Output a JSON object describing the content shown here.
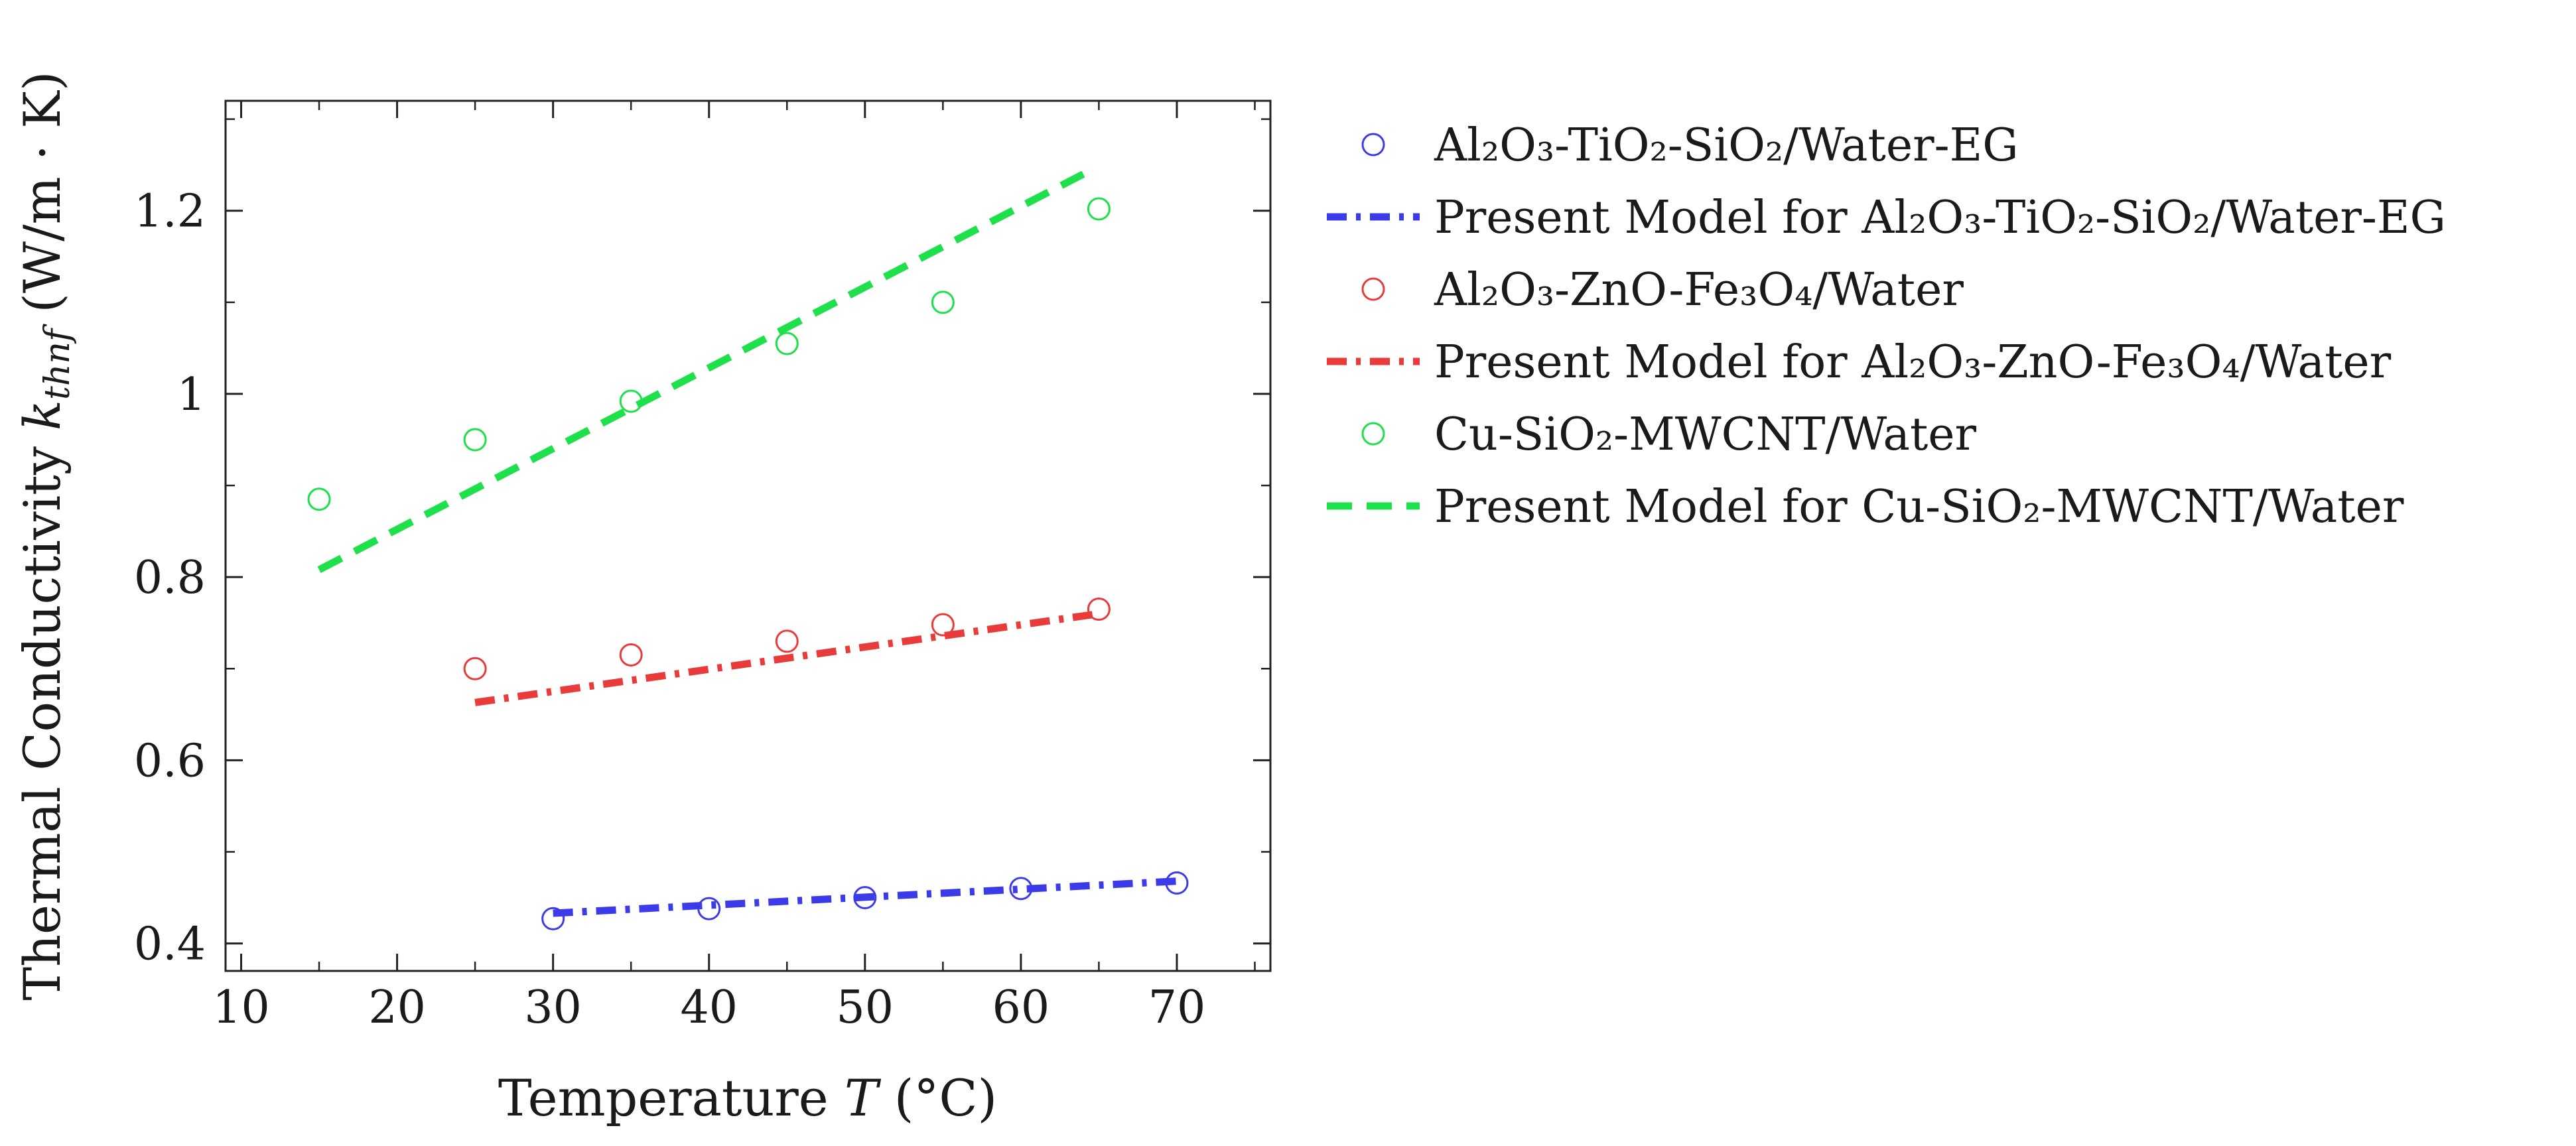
{
  "chart_data": {
    "type": "scatter",
    "title": "",
    "xlabel": "Temperature T (°C)",
    "xlabel_parts": {
      "pre": "Temperature ",
      "var": "T",
      "post": " (°C)"
    },
    "ylabel": "Thermal Conductivity k_thnf (W/m · K)",
    "ylabel_parts": {
      "pre": "Thermal Conductivity ",
      "var": "k",
      "sub": "thnf",
      "post": " (W/m · K)"
    },
    "xlim": [
      9,
      76
    ],
    "ylim": [
      0.37,
      1.32
    ],
    "xticks": [
      10,
      20,
      30,
      40,
      50,
      60,
      70
    ],
    "yticks": [
      0.4,
      0.6,
      0.8,
      1,
      1.2
    ],
    "ytick_labels": [
      "0.4",
      "0.6",
      "0.8",
      "1",
      "1.2"
    ],
    "grid": false,
    "legend_position": "outside-right",
    "series": [
      {
        "name": "Al₂O₃-TiO₂-SiO₂/Water-EG",
        "kind": "markers",
        "color": "#3b3bea",
        "x": [
          30,
          40,
          50,
          60,
          70
        ],
        "y": [
          0.427,
          0.438,
          0.45,
          0.46,
          0.466
        ]
      },
      {
        "name": "Present Model for Al₂O₃-TiO₂-SiO₂/Water-EG",
        "kind": "dashdot",
        "color": "#3b3bea",
        "x": [
          30,
          70
        ],
        "y": [
          0.433,
          0.468
        ]
      },
      {
        "name": "Al₂O₃-ZnO-Fe₃O₄/Water",
        "kind": "markers",
        "color": "#ea3b3b",
        "x": [
          25,
          35,
          45,
          55,
          65
        ],
        "y": [
          0.7,
          0.715,
          0.73,
          0.748,
          0.765
        ]
      },
      {
        "name": "Present Model for Al₂O₃-ZnO-Fe₃O₄/Water",
        "kind": "dashdot",
        "color": "#ea3b3b",
        "x": [
          25,
          65
        ],
        "y": [
          0.663,
          0.76
        ]
      },
      {
        "name": "Cu-SiO₂-MWCNT/Water",
        "kind": "markers",
        "color": "#1ee04a",
        "x": [
          15,
          25,
          35,
          45,
          55,
          65
        ],
        "y": [
          0.885,
          0.95,
          0.992,
          1.055,
          1.1,
          1.202
        ]
      },
      {
        "name": "Present Model for Cu-SiO₂-MWCNT/Water",
        "kind": "dashed",
        "color": "#1ee04a",
        "x": [
          15,
          64
        ],
        "y": [
          0.808,
          1.24
        ]
      }
    ]
  }
}
